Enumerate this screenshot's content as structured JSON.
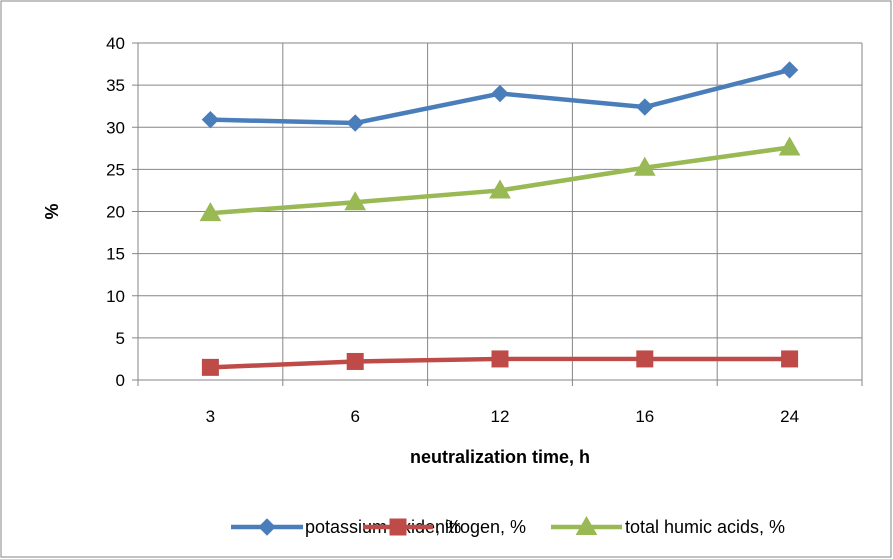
{
  "chart_data": {
    "type": "line",
    "title": "",
    "xlabel": "neutralization time, h",
    "ylabel": "%",
    "categories": [
      "3",
      "6",
      "12",
      "16",
      "24"
    ],
    "ylim": [
      0,
      40
    ],
    "yticks": [
      0,
      5,
      10,
      15,
      20,
      25,
      30,
      35,
      40
    ],
    "grid": true,
    "legend_position": "bottom",
    "series": [
      {
        "name": "potassium oxide, %",
        "values": [
          30.9,
          30.5,
          34.0,
          32.4,
          36.8
        ],
        "color": "#4a7ebb",
        "marker": "diamond"
      },
      {
        "name": "nitrogen, %",
        "values": [
          1.5,
          2.2,
          2.5,
          2.5,
          2.5
        ],
        "color": "#be4b48",
        "marker": "square"
      },
      {
        "name": "total humic acids, %",
        "values": [
          19.8,
          21.1,
          22.5,
          25.2,
          27.6
        ],
        "color": "#98b954",
        "marker": "triangle"
      }
    ]
  }
}
